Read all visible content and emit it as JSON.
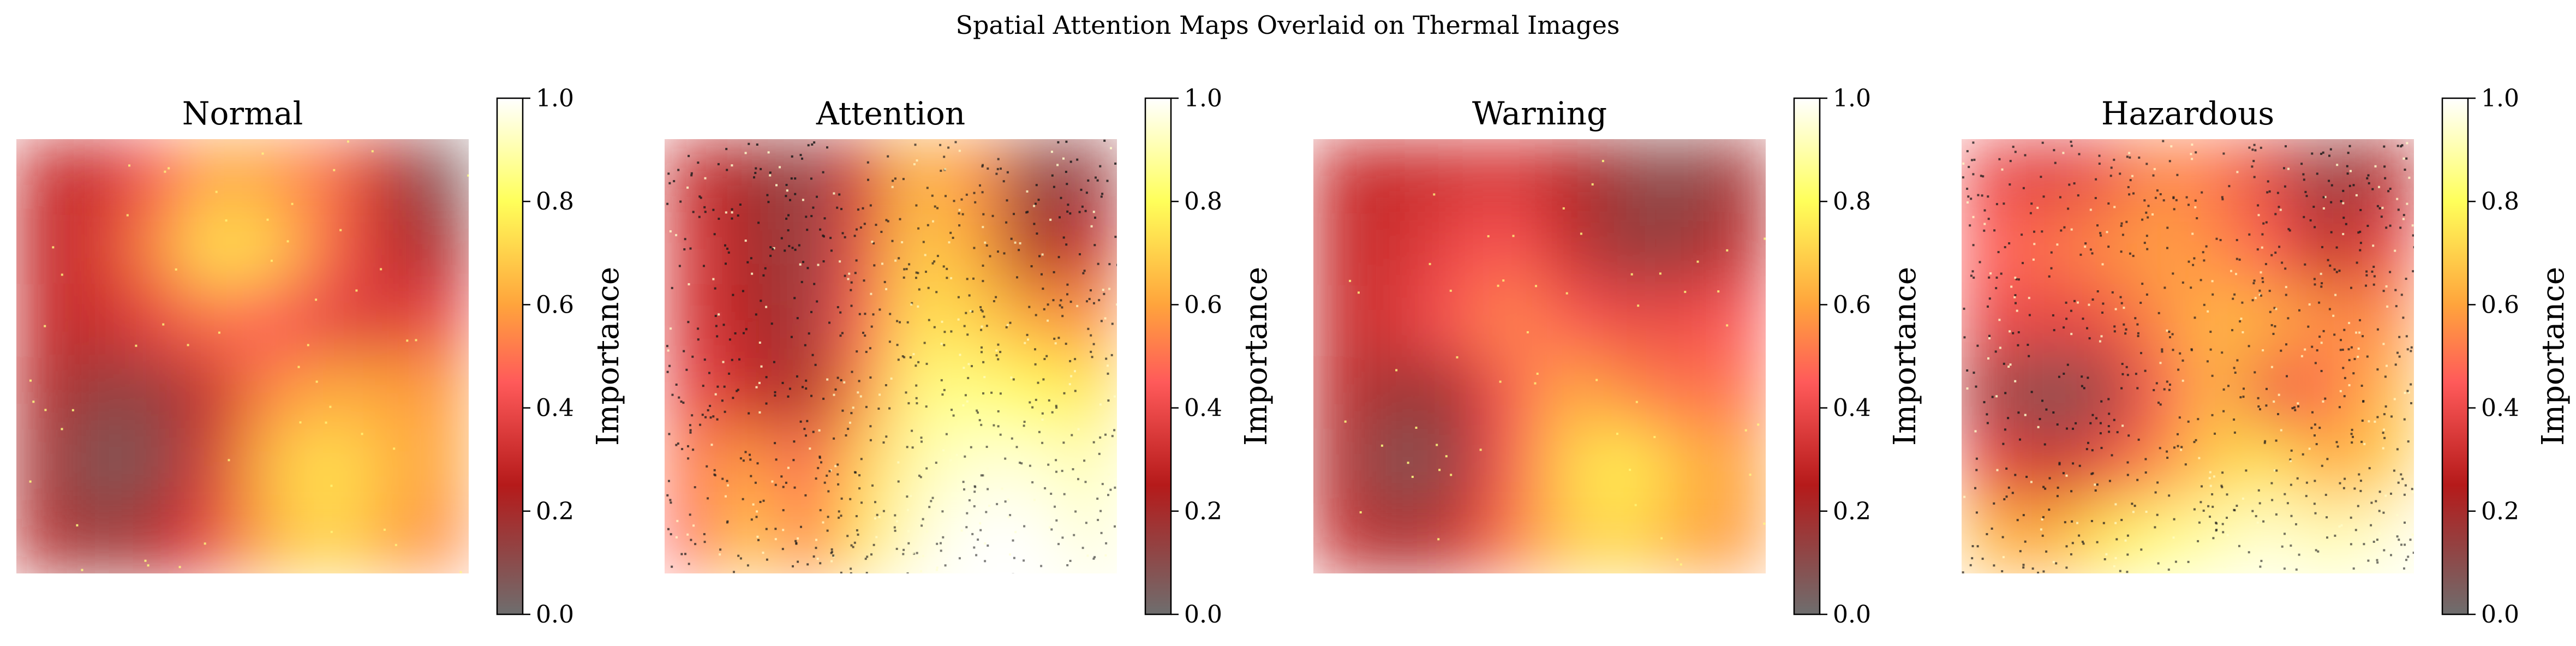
{
  "suptitle": "Spatial Attention Maps Overlaid on Thermal Images",
  "colormap": {
    "stops": [
      {
        "v": 0.0,
        "color": "#6e6e6e"
      },
      {
        "v": 0.25,
        "color": "#b51a1a"
      },
      {
        "v": 0.45,
        "color": "#ff5a5a"
      },
      {
        "v": 0.6,
        "color": "#ffa43c"
      },
      {
        "v": 0.8,
        "color": "#ffff5a"
      },
      {
        "v": 1.0,
        "color": "#ffffff"
      }
    ]
  },
  "chart_data": [
    {
      "type": "heatmap",
      "title": "Normal",
      "colorbar_label": "Importance",
      "colorbar_range": [
        0.0,
        1.0
      ],
      "colorbar_ticks": [
        "0.0",
        "0.2",
        "0.4",
        "0.6",
        "0.8",
        "1.0"
      ],
      "texture": "smooth",
      "grid": [
        [
          0.3,
          0.3,
          0.45,
          0.62,
          0.58,
          0.5,
          0.28,
          0.05
        ],
        [
          0.28,
          0.35,
          0.55,
          0.75,
          0.7,
          0.48,
          0.3,
          0.2
        ],
        [
          0.3,
          0.3,
          0.4,
          0.5,
          0.45,
          0.38,
          0.35,
          0.4
        ],
        [
          0.25,
          0.12,
          0.15,
          0.3,
          0.55,
          0.62,
          0.6,
          0.58
        ],
        [
          0.2,
          0.05,
          0.1,
          0.35,
          0.65,
          0.75,
          0.65,
          0.6
        ],
        [
          0.25,
          0.15,
          0.25,
          0.4,
          0.62,
          0.72,
          0.62,
          0.55
        ]
      ]
    },
    {
      "type": "heatmap",
      "title": "Attention",
      "colorbar_label": "Importance",
      "colorbar_range": [
        0.0,
        1.0
      ],
      "colorbar_ticks": [
        "0.0",
        "0.2",
        "0.4",
        "0.6",
        "0.8",
        "1.0"
      ],
      "texture": "noisy",
      "grid": [
        [
          0.3,
          0.2,
          0.1,
          0.35,
          0.65,
          0.55,
          0.1,
          0.15
        ],
        [
          0.35,
          0.22,
          0.12,
          0.4,
          0.7,
          0.6,
          0.2,
          0.3
        ],
        [
          0.35,
          0.25,
          0.15,
          0.45,
          0.75,
          0.7,
          0.6,
          0.55
        ],
        [
          0.4,
          0.3,
          0.2,
          0.55,
          0.85,
          0.85,
          0.8,
          0.75
        ],
        [
          0.5,
          0.6,
          0.45,
          0.7,
          0.9,
          0.95,
          0.95,
          0.9
        ],
        [
          0.45,
          0.7,
          0.5,
          0.75,
          0.95,
          1.0,
          1.0,
          0.95
        ]
      ]
    },
    {
      "type": "heatmap",
      "title": "Warning",
      "colorbar_label": "Importance",
      "colorbar_range": [
        0.0,
        1.0
      ],
      "colorbar_ticks": [
        "0.0",
        "0.2",
        "0.4",
        "0.6",
        "0.8",
        "1.0"
      ],
      "texture": "smooth",
      "grid": [
        [
          0.3,
          0.3,
          0.32,
          0.35,
          0.25,
          0.15,
          0.08,
          0.2
        ],
        [
          0.3,
          0.32,
          0.4,
          0.45,
          0.3,
          0.15,
          0.15,
          0.28
        ],
        [
          0.3,
          0.35,
          0.45,
          0.55,
          0.45,
          0.4,
          0.4,
          0.45
        ],
        [
          0.28,
          0.15,
          0.2,
          0.45,
          0.62,
          0.55,
          0.5,
          0.5
        ],
        [
          0.25,
          0.05,
          0.15,
          0.45,
          0.7,
          0.78,
          0.65,
          0.6
        ],
        [
          0.3,
          0.2,
          0.3,
          0.5,
          0.68,
          0.72,
          0.62,
          0.58
        ]
      ]
    },
    {
      "type": "heatmap",
      "title": "Hazardous",
      "colorbar_label": "Importance",
      "colorbar_range": [
        0.0,
        1.0
      ],
      "colorbar_ticks": [
        "0.0",
        "0.2",
        "0.4",
        "0.6",
        "0.8",
        "1.0"
      ],
      "texture": "noisy",
      "grid": [
        [
          0.4,
          0.35,
          0.4,
          0.55,
          0.5,
          0.35,
          0.1,
          0.25
        ],
        [
          0.45,
          0.5,
          0.55,
          0.6,
          0.55,
          0.45,
          0.25,
          0.4
        ],
        [
          0.4,
          0.38,
          0.4,
          0.55,
          0.65,
          0.62,
          0.55,
          0.55
        ],
        [
          0.2,
          0.05,
          0.15,
          0.45,
          0.65,
          0.4,
          0.5,
          0.65
        ],
        [
          0.4,
          0.3,
          0.4,
          0.55,
          0.7,
          0.75,
          0.6,
          0.7
        ],
        [
          0.65,
          0.6,
          0.75,
          0.85,
          0.9,
          0.95,
          0.9,
          0.95
        ]
      ]
    }
  ]
}
